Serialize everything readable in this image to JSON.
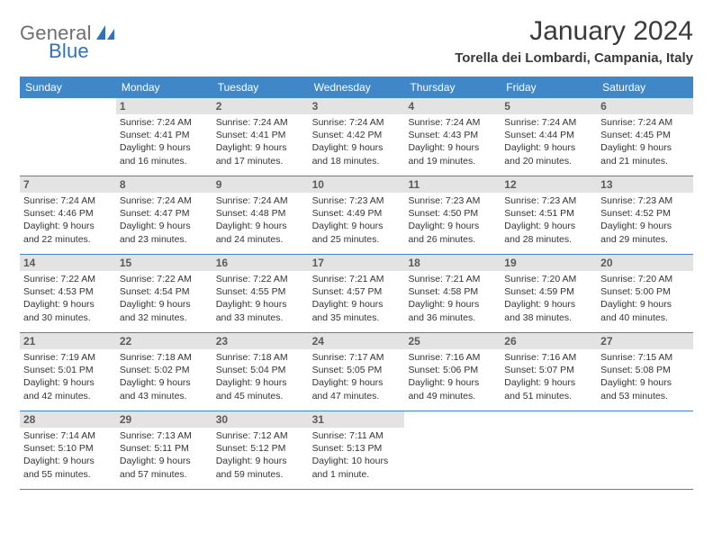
{
  "logo": {
    "text1": "General",
    "text2": "Blue"
  },
  "header": {
    "month_title": "January 2024",
    "location": "Torella dei Lombardi, Campania, Italy"
  },
  "colors": {
    "header_bg": "#3f87c7",
    "daynum_bg": "#e3e3e3",
    "text": "#333333",
    "logo_gray": "#6f6f6f",
    "logo_blue": "#2f72b9"
  },
  "days_of_week": [
    "Sunday",
    "Monday",
    "Tuesday",
    "Wednesday",
    "Thursday",
    "Friday",
    "Saturday"
  ],
  "weeks": [
    [
      {
        "num": "",
        "sunrise": "",
        "sunset": "",
        "daylight1": "",
        "daylight2": ""
      },
      {
        "num": "1",
        "sunrise": "Sunrise: 7:24 AM",
        "sunset": "Sunset: 4:41 PM",
        "daylight1": "Daylight: 9 hours",
        "daylight2": "and 16 minutes."
      },
      {
        "num": "2",
        "sunrise": "Sunrise: 7:24 AM",
        "sunset": "Sunset: 4:41 PM",
        "daylight1": "Daylight: 9 hours",
        "daylight2": "and 17 minutes."
      },
      {
        "num": "3",
        "sunrise": "Sunrise: 7:24 AM",
        "sunset": "Sunset: 4:42 PM",
        "daylight1": "Daylight: 9 hours",
        "daylight2": "and 18 minutes."
      },
      {
        "num": "4",
        "sunrise": "Sunrise: 7:24 AM",
        "sunset": "Sunset: 4:43 PM",
        "daylight1": "Daylight: 9 hours",
        "daylight2": "and 19 minutes."
      },
      {
        "num": "5",
        "sunrise": "Sunrise: 7:24 AM",
        "sunset": "Sunset: 4:44 PM",
        "daylight1": "Daylight: 9 hours",
        "daylight2": "and 20 minutes."
      },
      {
        "num": "6",
        "sunrise": "Sunrise: 7:24 AM",
        "sunset": "Sunset: 4:45 PM",
        "daylight1": "Daylight: 9 hours",
        "daylight2": "and 21 minutes."
      }
    ],
    [
      {
        "num": "7",
        "sunrise": "Sunrise: 7:24 AM",
        "sunset": "Sunset: 4:46 PM",
        "daylight1": "Daylight: 9 hours",
        "daylight2": "and 22 minutes."
      },
      {
        "num": "8",
        "sunrise": "Sunrise: 7:24 AM",
        "sunset": "Sunset: 4:47 PM",
        "daylight1": "Daylight: 9 hours",
        "daylight2": "and 23 minutes."
      },
      {
        "num": "9",
        "sunrise": "Sunrise: 7:24 AM",
        "sunset": "Sunset: 4:48 PM",
        "daylight1": "Daylight: 9 hours",
        "daylight2": "and 24 minutes."
      },
      {
        "num": "10",
        "sunrise": "Sunrise: 7:23 AM",
        "sunset": "Sunset: 4:49 PM",
        "daylight1": "Daylight: 9 hours",
        "daylight2": "and 25 minutes."
      },
      {
        "num": "11",
        "sunrise": "Sunrise: 7:23 AM",
        "sunset": "Sunset: 4:50 PM",
        "daylight1": "Daylight: 9 hours",
        "daylight2": "and 26 minutes."
      },
      {
        "num": "12",
        "sunrise": "Sunrise: 7:23 AM",
        "sunset": "Sunset: 4:51 PM",
        "daylight1": "Daylight: 9 hours",
        "daylight2": "and 28 minutes."
      },
      {
        "num": "13",
        "sunrise": "Sunrise: 7:23 AM",
        "sunset": "Sunset: 4:52 PM",
        "daylight1": "Daylight: 9 hours",
        "daylight2": "and 29 minutes."
      }
    ],
    [
      {
        "num": "14",
        "sunrise": "Sunrise: 7:22 AM",
        "sunset": "Sunset: 4:53 PM",
        "daylight1": "Daylight: 9 hours",
        "daylight2": "and 30 minutes."
      },
      {
        "num": "15",
        "sunrise": "Sunrise: 7:22 AM",
        "sunset": "Sunset: 4:54 PM",
        "daylight1": "Daylight: 9 hours",
        "daylight2": "and 32 minutes."
      },
      {
        "num": "16",
        "sunrise": "Sunrise: 7:22 AM",
        "sunset": "Sunset: 4:55 PM",
        "daylight1": "Daylight: 9 hours",
        "daylight2": "and 33 minutes."
      },
      {
        "num": "17",
        "sunrise": "Sunrise: 7:21 AM",
        "sunset": "Sunset: 4:57 PM",
        "daylight1": "Daylight: 9 hours",
        "daylight2": "and 35 minutes."
      },
      {
        "num": "18",
        "sunrise": "Sunrise: 7:21 AM",
        "sunset": "Sunset: 4:58 PM",
        "daylight1": "Daylight: 9 hours",
        "daylight2": "and 36 minutes."
      },
      {
        "num": "19",
        "sunrise": "Sunrise: 7:20 AM",
        "sunset": "Sunset: 4:59 PM",
        "daylight1": "Daylight: 9 hours",
        "daylight2": "and 38 minutes."
      },
      {
        "num": "20",
        "sunrise": "Sunrise: 7:20 AM",
        "sunset": "Sunset: 5:00 PM",
        "daylight1": "Daylight: 9 hours",
        "daylight2": "and 40 minutes."
      }
    ],
    [
      {
        "num": "21",
        "sunrise": "Sunrise: 7:19 AM",
        "sunset": "Sunset: 5:01 PM",
        "daylight1": "Daylight: 9 hours",
        "daylight2": "and 42 minutes."
      },
      {
        "num": "22",
        "sunrise": "Sunrise: 7:18 AM",
        "sunset": "Sunset: 5:02 PM",
        "daylight1": "Daylight: 9 hours",
        "daylight2": "and 43 minutes."
      },
      {
        "num": "23",
        "sunrise": "Sunrise: 7:18 AM",
        "sunset": "Sunset: 5:04 PM",
        "daylight1": "Daylight: 9 hours",
        "daylight2": "and 45 minutes."
      },
      {
        "num": "24",
        "sunrise": "Sunrise: 7:17 AM",
        "sunset": "Sunset: 5:05 PM",
        "daylight1": "Daylight: 9 hours",
        "daylight2": "and 47 minutes."
      },
      {
        "num": "25",
        "sunrise": "Sunrise: 7:16 AM",
        "sunset": "Sunset: 5:06 PM",
        "daylight1": "Daylight: 9 hours",
        "daylight2": "and 49 minutes."
      },
      {
        "num": "26",
        "sunrise": "Sunrise: 7:16 AM",
        "sunset": "Sunset: 5:07 PM",
        "daylight1": "Daylight: 9 hours",
        "daylight2": "and 51 minutes."
      },
      {
        "num": "27",
        "sunrise": "Sunrise: 7:15 AM",
        "sunset": "Sunset: 5:08 PM",
        "daylight1": "Daylight: 9 hours",
        "daylight2": "and 53 minutes."
      }
    ],
    [
      {
        "num": "28",
        "sunrise": "Sunrise: 7:14 AM",
        "sunset": "Sunset: 5:10 PM",
        "daylight1": "Daylight: 9 hours",
        "daylight2": "and 55 minutes."
      },
      {
        "num": "29",
        "sunrise": "Sunrise: 7:13 AM",
        "sunset": "Sunset: 5:11 PM",
        "daylight1": "Daylight: 9 hours",
        "daylight2": "and 57 minutes."
      },
      {
        "num": "30",
        "sunrise": "Sunrise: 7:12 AM",
        "sunset": "Sunset: 5:12 PM",
        "daylight1": "Daylight: 9 hours",
        "daylight2": "and 59 minutes."
      },
      {
        "num": "31",
        "sunrise": "Sunrise: 7:11 AM",
        "sunset": "Sunset: 5:13 PM",
        "daylight1": "Daylight: 10 hours",
        "daylight2": "and 1 minute."
      },
      {
        "num": "",
        "sunrise": "",
        "sunset": "",
        "daylight1": "",
        "daylight2": ""
      },
      {
        "num": "",
        "sunrise": "",
        "sunset": "",
        "daylight1": "",
        "daylight2": ""
      },
      {
        "num": "",
        "sunrise": "",
        "sunset": "",
        "daylight1": "",
        "daylight2": ""
      }
    ]
  ]
}
